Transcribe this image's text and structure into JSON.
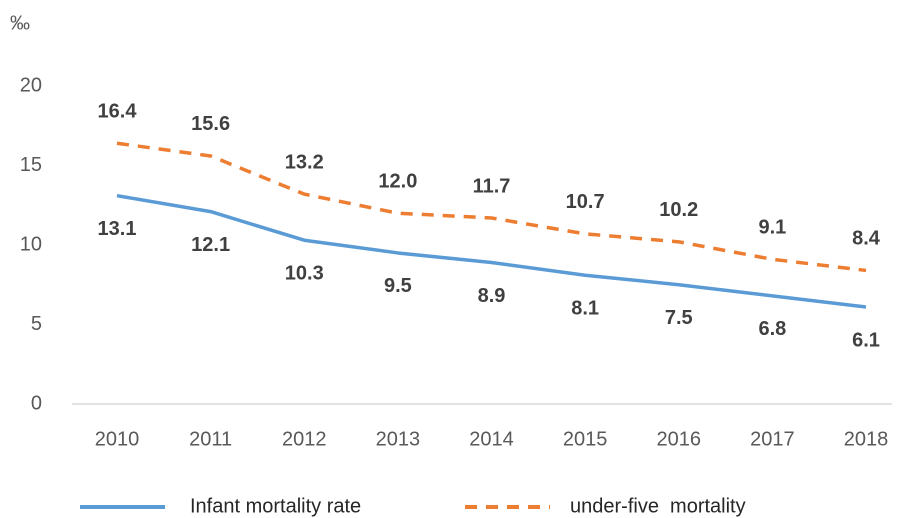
{
  "chart_data": {
    "type": "line",
    "y_unit": "‰",
    "categories": [
      "2010",
      "2011",
      "2012",
      "2013",
      "2014",
      "2015",
      "2016",
      "2017",
      "2018"
    ],
    "series": [
      {
        "name": "Infant mortality rate",
        "color": "#5b9bd5",
        "style": "solid",
        "label_position": "below",
        "values": [
          13.1,
          12.1,
          10.3,
          9.5,
          8.9,
          8.1,
          7.5,
          6.8,
          6.1
        ],
        "value_labels": [
          "13.1",
          "12.1",
          "10.3",
          "9.5",
          "8.9",
          "8.1",
          "7.5",
          "6.8",
          "6.1"
        ]
      },
      {
        "name": "under-five  mortality",
        "color": "#ed7d31",
        "style": "dashed",
        "label_position": "above",
        "values": [
          16.4,
          15.6,
          13.2,
          12.0,
          11.7,
          10.7,
          10.2,
          9.1,
          8.4
        ],
        "value_labels": [
          "16.4",
          "15.6",
          "13.2",
          "12.0",
          "11.7",
          "10.7",
          "10.2",
          "9.1",
          "8.4"
        ]
      }
    ],
    "ylim": [
      0,
      20
    ],
    "yticks": [
      0,
      5,
      10,
      15,
      20
    ],
    "grid": false,
    "legend": "bottom"
  }
}
